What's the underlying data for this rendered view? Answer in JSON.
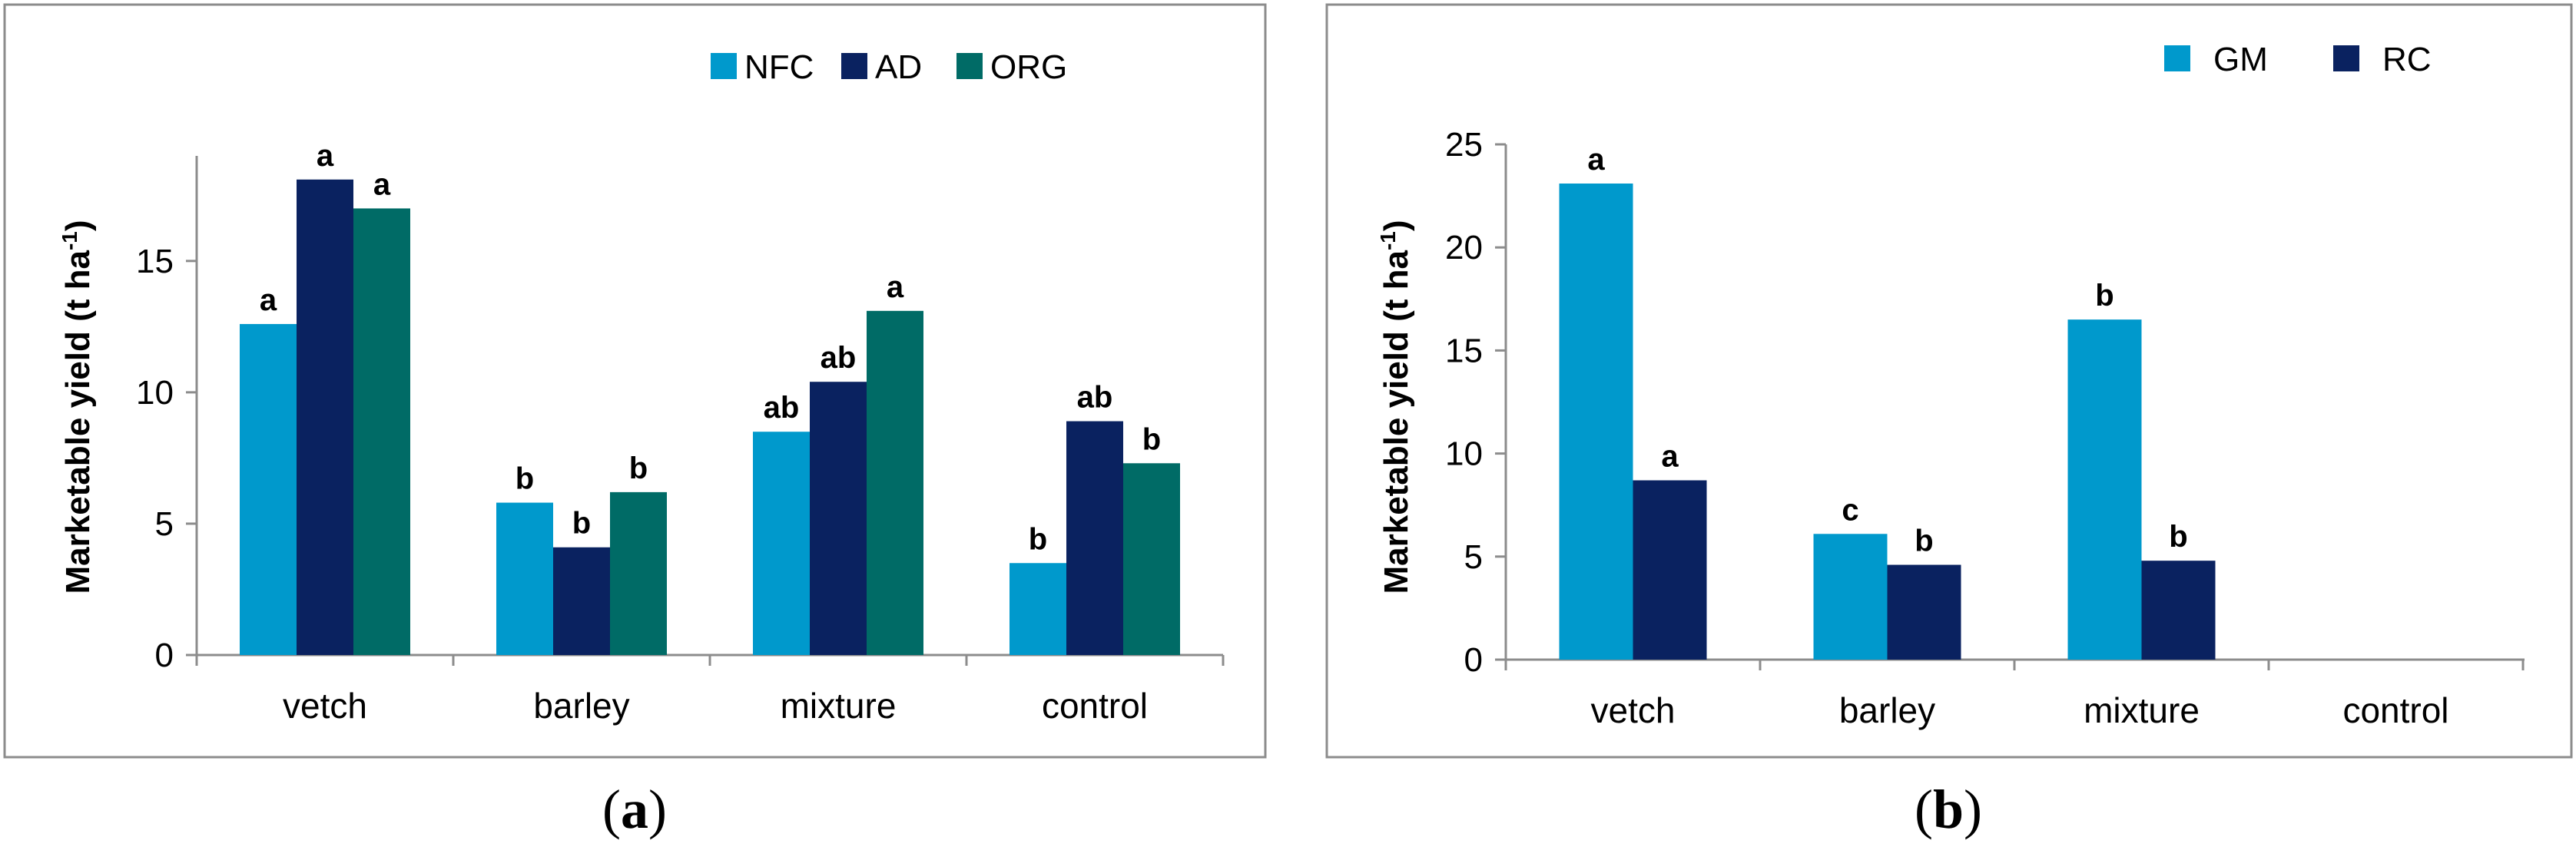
{
  "chart_data": [
    {
      "id": "a",
      "type": "bar",
      "panel_label": "a",
      "categories": [
        "vetch",
        "barley",
        "mixture",
        "control"
      ],
      "ylabel": "Marketable yield (t ha",
      "ylabel_sup": "-1",
      "ylabel_close": ")",
      "ylim": [
        0,
        19
      ],
      "yticks": [
        0,
        5,
        10,
        15
      ],
      "legend_position": "top-right",
      "series": [
        {
          "name": "NFC",
          "color": "#0099CC",
          "values": [
            12.6,
            5.8,
            8.5,
            3.5
          ],
          "letters": [
            "a",
            "b",
            "ab",
            "b"
          ]
        },
        {
          "name": "AD",
          "color": "#0A2260",
          "values": [
            18.1,
            4.1,
            10.4,
            8.9
          ],
          "letters": [
            "a",
            "b",
            "ab",
            "ab"
          ]
        },
        {
          "name": "ORG",
          "color": "#006B66",
          "values": [
            17.0,
            6.2,
            13.1,
            7.3
          ],
          "letters": [
            "a",
            "b",
            "a",
            "b"
          ]
        }
      ]
    },
    {
      "id": "b",
      "type": "bar",
      "panel_label": "b",
      "categories": [
        "vetch",
        "barley",
        "mixture",
        "control"
      ],
      "ylabel": "Marketable yield (t ha",
      "ylabel_sup": "-1",
      "ylabel_close": ")",
      "ylim": [
        0,
        25
      ],
      "yticks": [
        0,
        5,
        10,
        15,
        20,
        25
      ],
      "legend_position": "top-right",
      "series": [
        {
          "name": "GM",
          "color": "#0099CC",
          "values": [
            23.1,
            6.1,
            16.5,
            null
          ],
          "letters": [
            "a",
            "c",
            "b",
            ""
          ]
        },
        {
          "name": "RC",
          "color": "#0A2260",
          "values": [
            8.7,
            4.6,
            4.8,
            null
          ],
          "letters": [
            "a",
            "b",
            "b",
            ""
          ]
        }
      ]
    }
  ]
}
